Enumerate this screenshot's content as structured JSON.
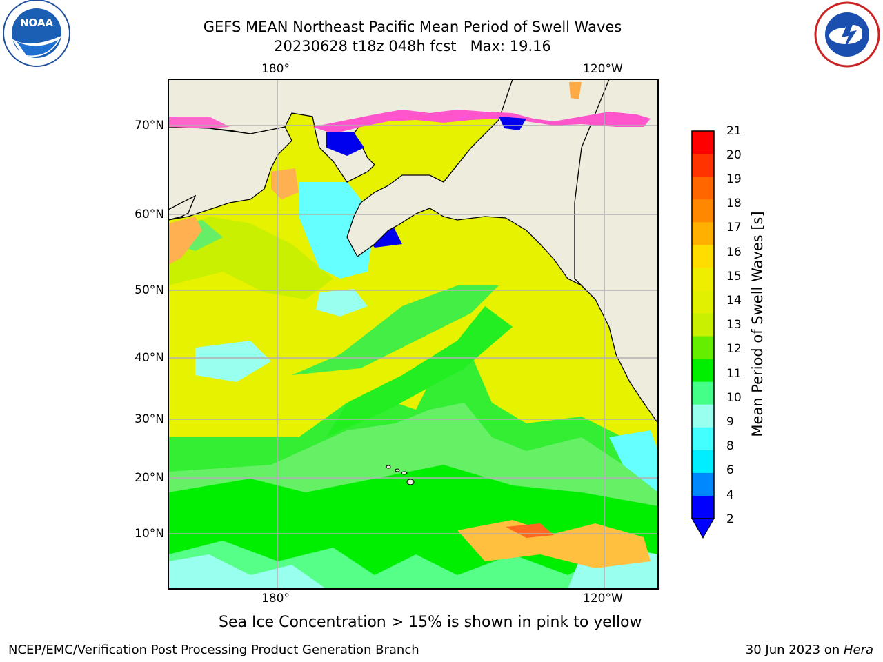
{
  "title_line1": "GEFS MEAN Northeast Pacific Mean Period of Swell Waves",
  "title_line2": "20230628 t18z 048h fcst   Max: 19.16",
  "map": {
    "lon_labels_top": [
      "180°",
      "120°W"
    ],
    "lon_labels_bottom": [
      "180°",
      "120°W"
    ],
    "lat_labels": [
      "70°N",
      "60°N",
      "50°N",
      "40°N",
      "30°N",
      "20°N",
      "10°N"
    ],
    "colors": {
      "land": "#eeecdc",
      "coast": "#000000",
      "grid": "#b0b0b0"
    }
  },
  "colorbar": {
    "label": "Mean Period of Swell Waves [s]",
    "ticks": [
      "21",
      "20",
      "19",
      "18",
      "17",
      "16",
      "15",
      "14",
      "13",
      "12",
      "11",
      "10",
      "9",
      "8",
      "6",
      "4",
      "2"
    ],
    "colors": [
      "#ff0000",
      "#ff3300",
      "#ff6600",
      "#ff8800",
      "#ffb000",
      "#ffdd00",
      "#eeee00",
      "#e0f000",
      "#c8f000",
      "#66ee00",
      "#00ee00",
      "#44ff88",
      "#99ffee",
      "#44ffff",
      "#00eeff",
      "#0088ff",
      "#0000ff"
    ]
  },
  "note": "Sea Ice Concentration > 15% is shown in pink to yellow",
  "footer_left": "NCEP/EMC/Verification Post Processing Product Generation Branch",
  "footer_right_prefix": "30 Jun 2023 on ",
  "footer_right_host": "Hera",
  "logos": {
    "noaa": "NOAA",
    "noaa_ring": "NATIONAL OCEANIC AND ATMOSPHERIC ADMINISTRATION · U.S. DEPARTMENT OF COMMERCE",
    "nws_ring": "NATIONAL WEATHER SERVICE"
  }
}
